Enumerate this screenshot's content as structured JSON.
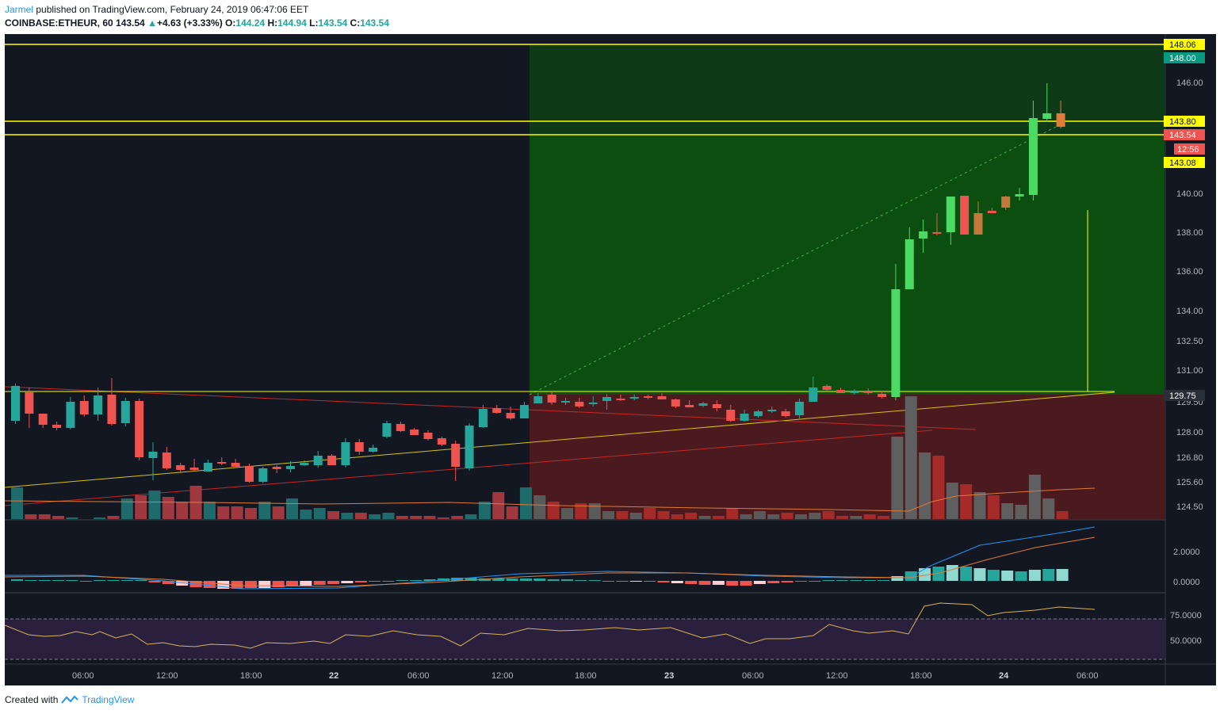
{
  "header": {
    "author": "Jarmel",
    "published_text": " published on TradingView.com, February 24, 2019 06:47:06 EET",
    "symbol": "COINBASE:ETHEUR, 60",
    "last": "143.54",
    "change": "+4.63 (+3.33%)",
    "o_label": "O:",
    "o": "144.24",
    "h_label": "H:",
    "h": "144.94",
    "l_label": "L:",
    "l": "143.54",
    "c_label": "C:",
    "c": "143.54"
  },
  "price_axis": {
    "ticks": [
      "146.00",
      "140.00",
      "138.00",
      "136.00",
      "134.00",
      "132.50",
      "131.00",
      "129.50",
      "128.00",
      "126.80",
      "125.60",
      "124.50"
    ],
    "tags": [
      {
        "label": "148.06",
        "bg": "#ffff00",
        "fg": "#000000"
      },
      {
        "label": "148.00",
        "bg": "#089981",
        "fg": "#ffffff"
      },
      {
        "label": "143.80",
        "bg": "#ffff00",
        "fg": "#000000"
      },
      {
        "label": "143.54",
        "bg": "#ef5350",
        "fg": "#ffffff"
      },
      {
        "label": "12:56",
        "bg": "#ef5350",
        "fg": "#ffffff"
      },
      {
        "label": "143.08",
        "bg": "#ffff00",
        "fg": "#000000"
      },
      {
        "label": "129.75",
        "bg": "#2a2e39",
        "fg": "#ffffff"
      }
    ]
  },
  "macd_axis": {
    "ticks": [
      "2.0000",
      "0.0000"
    ]
  },
  "rsi_axis": {
    "ticks": [
      "75.0000",
      "50.0000"
    ]
  },
  "time_axis": {
    "ticks": [
      "06:00",
      "12:00",
      "18:00",
      "22",
      "06:00",
      "12:00",
      "18:00",
      "23",
      "06:00",
      "12:00",
      "18:00",
      "24",
      "06:00"
    ]
  },
  "colors": {
    "up": "#26a69a",
    "up_bright": "#4cd964",
    "down": "#ef5350",
    "profit_zone": "#0b5a12",
    "loss_zone": "#5c1a1e",
    "level": "#ffff00",
    "rsi_band": "#2a1f3d"
  },
  "footer": {
    "created_with": "Created with",
    "brand": "TradingView"
  }
}
